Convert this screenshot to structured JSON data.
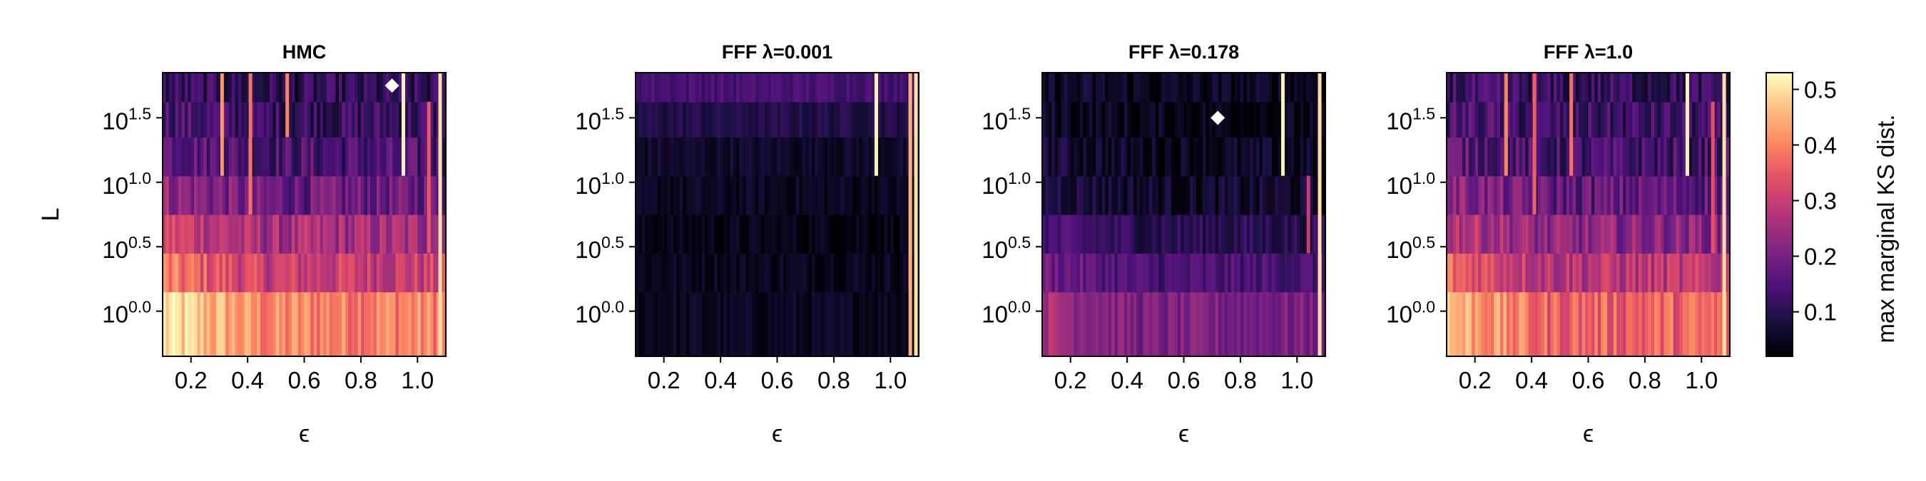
{
  "chart_data": {
    "type": "heatmap",
    "shared": {
      "xlabel": "ϵ",
      "ylabel": "L",
      "xlim": [
        0.1,
        1.1
      ],
      "xticks": [
        0.2,
        0.4,
        0.6,
        0.8,
        1.0
      ],
      "xtick_labels": [
        "0.2",
        "0.4",
        "0.6",
        "0.8",
        "1.0"
      ],
      "ylim_log10": [
        -0.35,
        1.85
      ],
      "yticks_log10": [
        0.0,
        0.5,
        1.0,
        1.5
      ],
      "ytick_base": "10",
      "ytick_exponents": [
        "0.0",
        "0.5",
        "1.0",
        "1.5"
      ],
      "rows_log10_L": [
        0.0,
        0.3,
        0.6,
        0.9,
        1.2,
        1.5,
        1.75
      ],
      "colormap": "magma"
    },
    "colorbar": {
      "label": "max marginal KS dist.",
      "range": [
        0.02,
        0.53
      ],
      "ticks": [
        0.1,
        0.2,
        0.3,
        0.4,
        0.5
      ],
      "tick_labels": [
        "0.1",
        "0.2",
        "0.3",
        "0.4",
        "0.5"
      ]
    },
    "panels": [
      {
        "title": "HMC",
        "row_base": [
          0.4,
          0.3,
          0.25,
          0.18,
          0.14,
          0.12,
          0.1
        ],
        "left_boost": 0.1,
        "noise": 0.06,
        "stripes": [
          {
            "eps": 0.31,
            "from_row": 4,
            "to_row": 6,
            "value": 0.42
          },
          {
            "eps": 0.41,
            "from_row": 3,
            "to_row": 6,
            "value": 0.38
          },
          {
            "eps": 0.54,
            "from_row": 5,
            "to_row": 6,
            "value": 0.4
          },
          {
            "eps": 0.95,
            "from_row": 4,
            "to_row": 6,
            "value": 0.52
          },
          {
            "eps": 1.04,
            "from_row": 2,
            "to_row": 5,
            "value": 0.35
          },
          {
            "eps": 1.08,
            "from_row": 0,
            "to_row": 6,
            "value": 0.5
          }
        ],
        "marker": {
          "eps": 0.91,
          "log10_L": 1.75
        }
      },
      {
        "title": "FFF λ=0.001",
        "row_base": [
          0.05,
          0.05,
          0.04,
          0.05,
          0.06,
          0.09,
          0.14
        ],
        "left_boost": 0.0,
        "noise": 0.025,
        "stripes": [
          {
            "eps": 0.95,
            "from_row": 4,
            "to_row": 6,
            "value": 0.52
          },
          {
            "eps": 1.07,
            "from_row": 0,
            "to_row": 6,
            "value": 0.45
          },
          {
            "eps": 1.09,
            "from_row": 0,
            "to_row": 6,
            "value": 0.5
          }
        ],
        "marker": null
      },
      {
        "title": "FFF λ=0.178",
        "row_base": [
          0.2,
          0.14,
          0.1,
          0.06,
          0.05,
          0.04,
          0.05
        ],
        "left_boost": 0.06,
        "noise": 0.04,
        "stripes": [
          {
            "eps": 0.95,
            "from_row": 4,
            "to_row": 6,
            "value": 0.52
          },
          {
            "eps": 1.04,
            "from_row": 2,
            "to_row": 3,
            "value": 0.3
          },
          {
            "eps": 1.08,
            "from_row": 0,
            "to_row": 6,
            "value": 0.5
          }
        ],
        "marker": {
          "eps": 0.72,
          "log10_L": 1.5
        }
      },
      {
        "title": "FFF λ=1.0",
        "row_base": [
          0.36,
          0.28,
          0.22,
          0.17,
          0.13,
          0.12,
          0.11
        ],
        "left_boost": 0.1,
        "noise": 0.06,
        "stripes": [
          {
            "eps": 0.31,
            "from_row": 4,
            "to_row": 6,
            "value": 0.4
          },
          {
            "eps": 0.41,
            "from_row": 3,
            "to_row": 6,
            "value": 0.36
          },
          {
            "eps": 0.54,
            "from_row": 4,
            "to_row": 6,
            "value": 0.38
          },
          {
            "eps": 0.95,
            "from_row": 4,
            "to_row": 6,
            "value": 0.52
          },
          {
            "eps": 1.04,
            "from_row": 2,
            "to_row": 5,
            "value": 0.34
          },
          {
            "eps": 1.08,
            "from_row": 0,
            "to_row": 6,
            "value": 0.5
          }
        ],
        "marker": null
      }
    ]
  }
}
